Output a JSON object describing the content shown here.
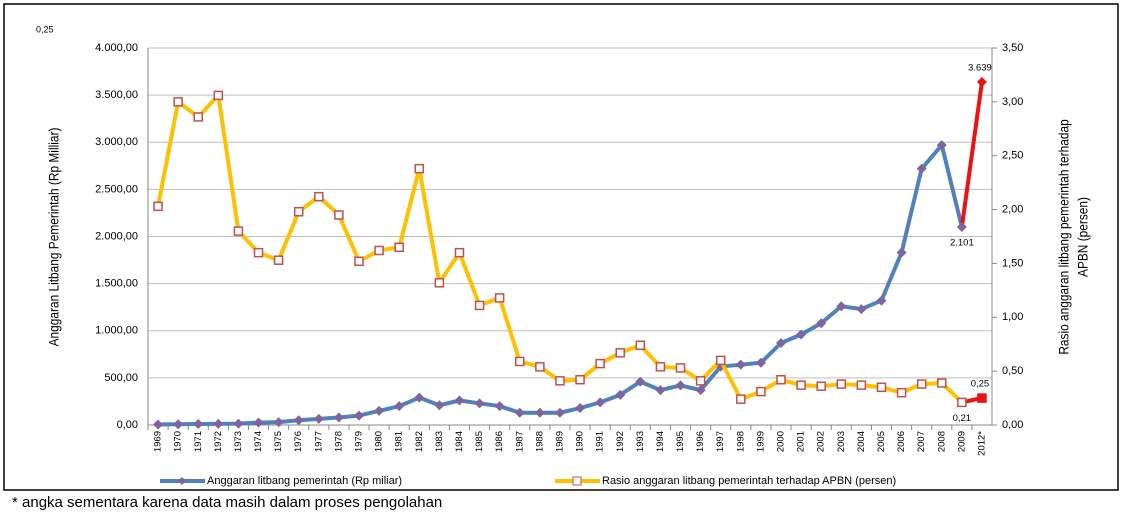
{
  "chart_data": {
    "type": "line",
    "corner_note": "0,25",
    "ylabel": "Anggaran Litbang Pemerintah (Rp Milliar)",
    "y2label": [
      "Rasio anggaran litbang pemerintah terhadap",
      "APBN (persen)"
    ],
    "footnote": "* angka sementara karena data masih dalam proses pengolahan",
    "categories": [
      "1969",
      "1970",
      "1971",
      "1972",
      "1973",
      "1974",
      "1975",
      "1976",
      "1977",
      "1978",
      "1979",
      "1980",
      "1981",
      "1982",
      "1983",
      "1984",
      "1985",
      "1986",
      "1987",
      "1988",
      "1989",
      "1990",
      "1991",
      "1992",
      "1993",
      "1994",
      "1995",
      "1996",
      "1997",
      "1998",
      "1999",
      "2000",
      "2001",
      "2002",
      "2003",
      "2004",
      "2005",
      "2006",
      "2007",
      "2008",
      "2009",
      "2012*"
    ],
    "series": [
      {
        "name": "Anggaran litbang pemerintah (Rp miliar)",
        "color": "#4f81bd",
        "marker_color": "#8064a2",
        "last_segment_color": "#ee1111",
        "marker": "diamond",
        "values": [
          5,
          8,
          10,
          12,
          15,
          25,
          30,
          50,
          65,
          80,
          100,
          150,
          200,
          290,
          210,
          260,
          230,
          200,
          130,
          130,
          130,
          180,
          240,
          320,
          460,
          370,
          420,
          370,
          620,
          640,
          660,
          870,
          960,
          1080,
          1260,
          1230,
          1320,
          1830,
          2720,
          2970,
          2101,
          3639
        ],
        "value_labels": [
          null,
          null,
          null,
          null,
          null,
          null,
          null,
          null,
          null,
          null,
          null,
          null,
          null,
          null,
          null,
          null,
          null,
          null,
          null,
          null,
          null,
          null,
          null,
          null,
          null,
          null,
          null,
          null,
          null,
          null,
          null,
          null,
          null,
          null,
          null,
          null,
          null,
          null,
          null,
          null,
          "2.101",
          "3.639"
        ]
      },
      {
        "name": "Rasio anggaran litbang pemerintah terhadap APBN (persen)",
        "color": "#ffc000",
        "marker_color": "#c0504d",
        "last_segment_color": "#ee1111",
        "marker": "square",
        "axis": "y2",
        "values": [
          2.03,
          3.0,
          2.86,
          3.06,
          1.8,
          1.6,
          1.53,
          1.98,
          2.12,
          1.95,
          1.52,
          1.62,
          1.65,
          2.38,
          1.32,
          1.6,
          1.11,
          1.18,
          0.59,
          0.54,
          0.41,
          0.42,
          0.57,
          0.67,
          0.74,
          0.54,
          0.53,
          0.41,
          0.6,
          0.24,
          0.31,
          0.42,
          0.37,
          0.36,
          0.38,
          0.37,
          0.35,
          0.3,
          0.38,
          0.39,
          0.21,
          0.25
        ],
        "value_labels": [
          null,
          null,
          null,
          null,
          null,
          null,
          null,
          null,
          null,
          null,
          null,
          null,
          null,
          null,
          null,
          null,
          null,
          null,
          null,
          null,
          null,
          null,
          null,
          null,
          null,
          null,
          null,
          null,
          null,
          null,
          null,
          null,
          null,
          null,
          null,
          null,
          null,
          null,
          null,
          null,
          "0,21",
          "0,25"
        ]
      }
    ],
    "ylim": [
      0,
      4000
    ],
    "yticks": [
      {
        "value": 0,
        "label": "0,00"
      },
      {
        "value": 500,
        "label": "500,00"
      },
      {
        "value": 1000,
        "label": "1.000,00"
      },
      {
        "value": 1500,
        "label": "1.500,00"
      },
      {
        "value": 2000,
        "label": "2.000,00"
      },
      {
        "value": 2500,
        "label": "2.500,00"
      },
      {
        "value": 3000,
        "label": "3.000,00"
      },
      {
        "value": 3500,
        "label": "3.500,00"
      },
      {
        "value": 4000,
        "label": "4.000,00"
      }
    ],
    "y2lim": [
      0,
      3.5
    ],
    "y2ticks": [
      {
        "value": 0,
        "label": "0,00"
      },
      {
        "value": 0.5,
        "label": "0,50"
      },
      {
        "value": 1,
        "label": "1,00"
      },
      {
        "value": 1.5,
        "label": "1,50"
      },
      {
        "value": 2,
        "label": "2,00"
      },
      {
        "value": 2.5,
        "label": "2,50"
      },
      {
        "value": 3,
        "label": "3,00"
      },
      {
        "value": 3.5,
        "label": "3,50"
      }
    ],
    "grid": true,
    "legend": "bottom"
  }
}
